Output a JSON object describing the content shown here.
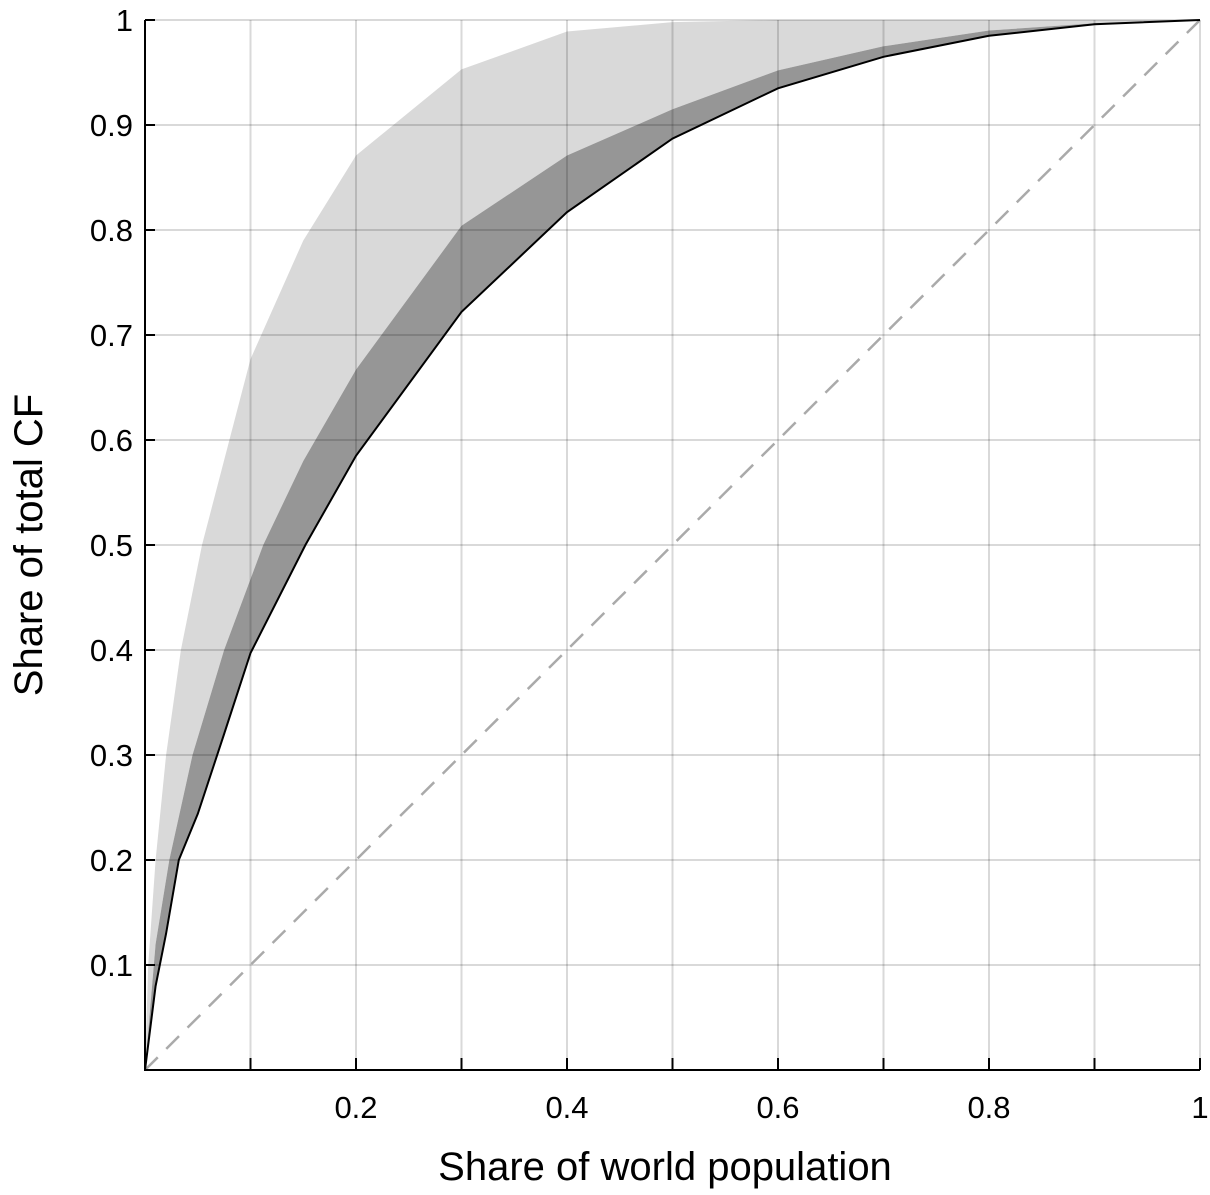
{
  "chart_data": {
    "type": "area",
    "title": "",
    "xlabel": "Share of world population",
    "ylabel": "Share of total CF",
    "xlim": [
      0,
      1
    ],
    "ylim": [
      0,
      1
    ],
    "x_ticks": [
      0.1,
      0.2,
      0.3,
      0.4,
      0.5,
      0.6,
      0.7,
      0.8,
      0.9,
      1
    ],
    "x_tick_labels": [
      "0.2",
      "0.4",
      "0.6",
      "0.8",
      "1"
    ],
    "x_tick_label_values": [
      0.2,
      0.4,
      0.6,
      0.8,
      1
    ],
    "y_ticks": [
      0.1,
      0.2,
      0.3,
      0.4,
      0.5,
      0.6,
      0.7,
      0.8,
      0.9,
      1
    ],
    "y_tick_labels": [
      "0.1",
      "0.2",
      "0.3",
      "0.4",
      "0.5",
      "0.6",
      "0.7",
      "0.8",
      "0.9",
      "1"
    ],
    "grid": true,
    "colors": {
      "light_band": "#d9d9d9",
      "dark_band": "#969696",
      "lower_curve": "#000000",
      "equality_line": "#aaaaaa",
      "grid": "#d9d9d9"
    },
    "series": [
      {
        "role": "light band upper edge",
        "x": [
          0,
          0.003,
          0.01,
          0.02,
          0.034,
          0.054,
          0.1,
          0.15,
          0.2,
          0.3,
          0.4,
          0.5,
          0.6,
          0.8,
          1
        ],
        "y": [
          0,
          0.1,
          0.2,
          0.3,
          0.4,
          0.5,
          0.677,
          0.79,
          0.871,
          0.953,
          0.989,
          0.998,
          1,
          1,
          1
        ]
      },
      {
        "role": "dark band upper edge",
        "x": [
          0,
          0.01,
          0.023,
          0.045,
          0.075,
          0.112,
          0.15,
          0.2,
          0.3,
          0.4,
          0.5,
          0.6,
          0.7,
          0.8,
          0.9,
          1
        ],
        "y": [
          0,
          0.12,
          0.2,
          0.3,
          0.4,
          0.5,
          0.58,
          0.667,
          0.804,
          0.871,
          0.915,
          0.952,
          0.975,
          0.99,
          0.997,
          1
        ]
      },
      {
        "role": "lower curve",
        "x": [
          0,
          0.01,
          0.02,
          0.032,
          0.05,
          0.075,
          0.1,
          0.152,
          0.2,
          0.3,
          0.4,
          0.5,
          0.6,
          0.7,
          0.8,
          0.9,
          1
        ],
        "y": [
          0,
          0.08,
          0.13,
          0.2,
          0.244,
          0.32,
          0.397,
          0.5,
          0.585,
          0.722,
          0.817,
          0.887,
          0.935,
          0.965,
          0.985,
          0.996,
          1
        ]
      },
      {
        "role": "equality line (dashed)",
        "x": [
          0,
          1
        ],
        "y": [
          0,
          1
        ]
      }
    ]
  }
}
